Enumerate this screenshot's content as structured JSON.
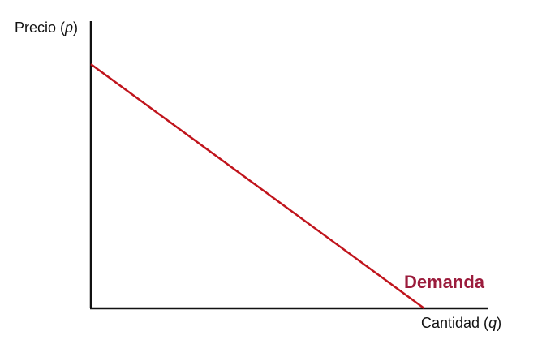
{
  "chart_data": {
    "type": "line",
    "xlabel": "Cantidad (q)",
    "ylabel": "Precio (p)",
    "xlabel_parts": {
      "prefix": "Cantidad (",
      "var": "q",
      "suffix": ")"
    },
    "ylabel_parts": {
      "prefix": "Precio (",
      "var": "p",
      "suffix": ")"
    },
    "xlim": [
      0,
      100
    ],
    "ylim": [
      0,
      100
    ],
    "grid": false,
    "ticks": false,
    "series": [
      {
        "name": "Demanda",
        "color": "#c0141c",
        "x": [
          0,
          84
        ],
        "y": [
          85,
          0
        ]
      }
    ],
    "label_color": "#9b1c3c",
    "axis_color": "#111111"
  }
}
